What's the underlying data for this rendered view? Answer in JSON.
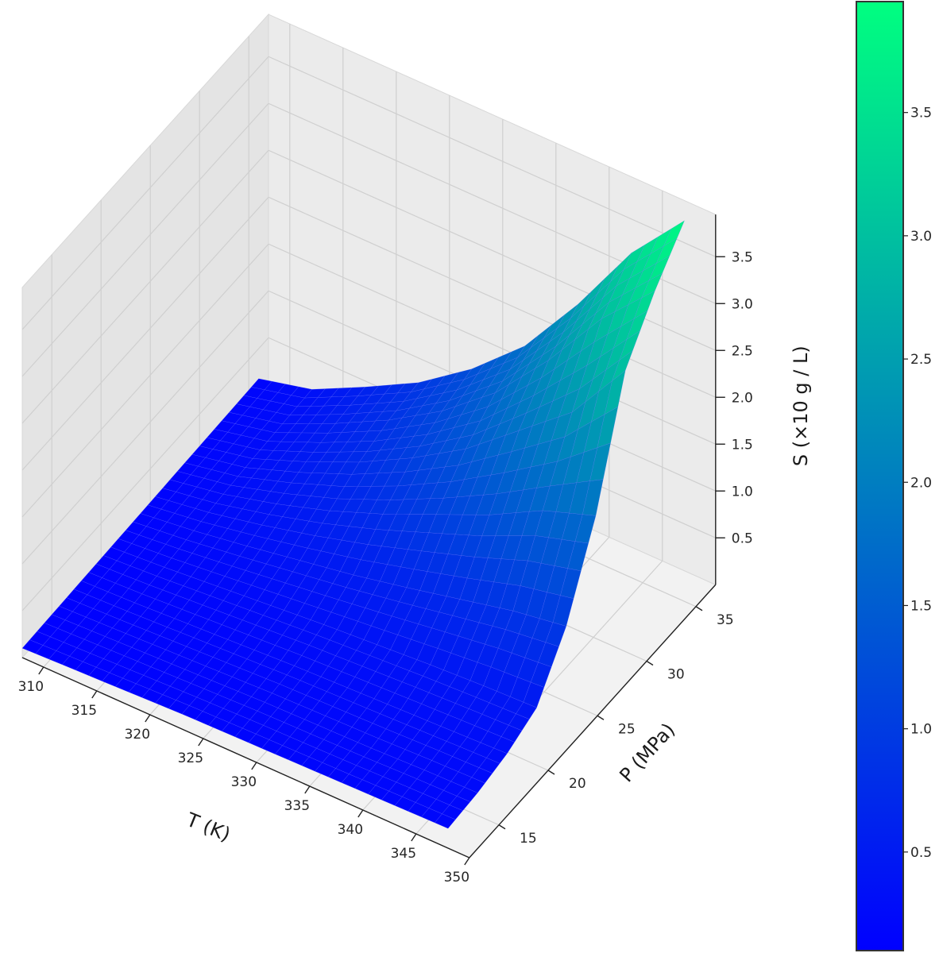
{
  "chart_data": {
    "type": "surface3d",
    "title": "",
    "xlabel": "T (K)",
    "ylabel": "P (MPa)",
    "zlabel": "S (×10 g / L)",
    "x_ticks": [
      "310",
      "315",
      "320",
      "325",
      "330",
      "335",
      "340",
      "345",
      "350"
    ],
    "y_ticks": [
      "15",
      "20",
      "25",
      "30",
      "35"
    ],
    "z_ticks": [
      "0.5",
      "1.0",
      "1.5",
      "2.0",
      "2.5",
      "3.0",
      "3.5"
    ],
    "colorbar_ticks": [
      "0.5",
      "1.0",
      "1.5",
      "2.0",
      "2.5",
      "3.0",
      "3.5"
    ],
    "colormap": "winter",
    "colormap_colors": [
      "#0000ff",
      "#00ff80"
    ],
    "grid": true,
    "xlim": [
      308,
      350
    ],
    "ylim": [
      12,
      37
    ],
    "zlim": [
      0,
      3.95
    ],
    "T": [
      308,
      313,
      318,
      323,
      328,
      333,
      338,
      343,
      348
    ],
    "P": [
      12,
      15,
      18,
      21,
      24,
      27,
      30,
      33,
      36
    ],
    "S": [
      [
        0.1,
        0.12,
        0.14,
        0.16,
        0.17,
        0.18,
        0.19,
        0.2,
        0.21
      ],
      [
        0.11,
        0.13,
        0.15,
        0.17,
        0.19,
        0.2,
        0.21,
        0.23,
        0.24
      ],
      [
        0.12,
        0.14,
        0.17,
        0.2,
        0.23,
        0.25,
        0.27,
        0.29,
        0.31
      ],
      [
        0.13,
        0.17,
        0.22,
        0.27,
        0.32,
        0.36,
        0.4,
        0.43,
        0.45
      ],
      [
        0.14,
        0.21,
        0.3,
        0.4,
        0.5,
        0.62,
        0.75,
        0.88,
        0.97
      ],
      [
        0.15,
        0.25,
        0.4,
        0.58,
        0.8,
        1.05,
        1.3,
        1.6,
        1.8
      ],
      [
        0.16,
        0.28,
        0.5,
        0.75,
        1.05,
        1.4,
        1.85,
        2.3,
        3.0
      ],
      [
        0.17,
        0.3,
        0.56,
        0.85,
        1.2,
        1.65,
        2.25,
        2.95,
        3.5
      ],
      [
        0.18,
        0.32,
        0.6,
        0.9,
        1.3,
        1.8,
        2.5,
        3.3,
        3.9
      ]
    ]
  }
}
